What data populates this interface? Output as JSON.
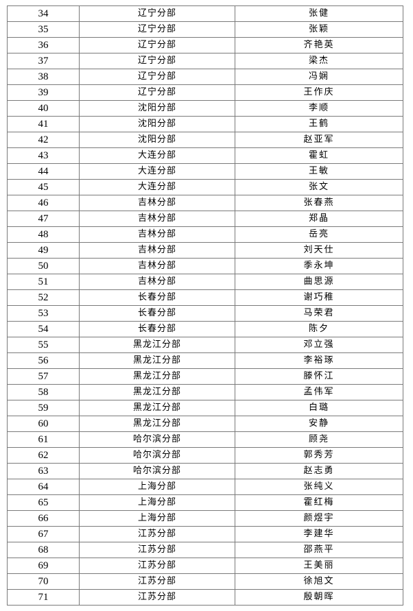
{
  "table": {
    "rows": [
      {
        "no": "34",
        "dept": "辽宁分部",
        "name": "张健"
      },
      {
        "no": "35",
        "dept": "辽宁分部",
        "name": "张颖"
      },
      {
        "no": "36",
        "dept": "辽宁分部",
        "name": "齐艳英"
      },
      {
        "no": "37",
        "dept": "辽宁分部",
        "name": "梁杰"
      },
      {
        "no": "38",
        "dept": "辽宁分部",
        "name": "冯娴"
      },
      {
        "no": "39",
        "dept": "辽宁分部",
        "name": "王作庆"
      },
      {
        "no": "40",
        "dept": "沈阳分部",
        "name": "李顺"
      },
      {
        "no": "41",
        "dept": "沈阳分部",
        "name": "王鹤"
      },
      {
        "no": "42",
        "dept": "沈阳分部",
        "name": "赵亚军"
      },
      {
        "no": "43",
        "dept": "大连分部",
        "name": "霍虹"
      },
      {
        "no": "44",
        "dept": "大连分部",
        "name": "王敏"
      },
      {
        "no": "45",
        "dept": "大连分部",
        "name": "张文"
      },
      {
        "no": "46",
        "dept": "吉林分部",
        "name": "张春燕"
      },
      {
        "no": "47",
        "dept": "吉林分部",
        "name": "郑晶"
      },
      {
        "no": "48",
        "dept": "吉林分部",
        "name": "岳亮"
      },
      {
        "no": "49",
        "dept": "吉林分部",
        "name": "刘天仕"
      },
      {
        "no": "50",
        "dept": "吉林分部",
        "name": "季永坤"
      },
      {
        "no": "51",
        "dept": "吉林分部",
        "name": "曲思源"
      },
      {
        "no": "52",
        "dept": "长春分部",
        "name": "谢巧稚"
      },
      {
        "no": "53",
        "dept": "长春分部",
        "name": "马荣君"
      },
      {
        "no": "54",
        "dept": "长春分部",
        "name": "陈夕"
      },
      {
        "no": "55",
        "dept": "黑龙江分部",
        "name": "邓立强"
      },
      {
        "no": "56",
        "dept": "黑龙江分部",
        "name": "李裕琢"
      },
      {
        "no": "57",
        "dept": "黑龙江分部",
        "name": "滕怀江"
      },
      {
        "no": "58",
        "dept": "黑龙江分部",
        "name": "孟伟军"
      },
      {
        "no": "59",
        "dept": "黑龙江分部",
        "name": "白璐"
      },
      {
        "no": "60",
        "dept": "黑龙江分部",
        "name": "安静"
      },
      {
        "no": "61",
        "dept": "哈尔滨分部",
        "name": "顾尧"
      },
      {
        "no": "62",
        "dept": "哈尔滨分部",
        "name": "郭秀芳"
      },
      {
        "no": "63",
        "dept": "哈尔滨分部",
        "name": "赵志勇"
      },
      {
        "no": "64",
        "dept": "上海分部",
        "name": "张纯义"
      },
      {
        "no": "65",
        "dept": "上海分部",
        "name": "霍红梅"
      },
      {
        "no": "66",
        "dept": "上海分部",
        "name": "颜煜宇"
      },
      {
        "no": "67",
        "dept": "江苏分部",
        "name": "李建华"
      },
      {
        "no": "68",
        "dept": "江苏分部",
        "name": "邵燕平"
      },
      {
        "no": "69",
        "dept": "江苏分部",
        "name": "王美丽"
      },
      {
        "no": "70",
        "dept": "江苏分部",
        "name": "徐旭文"
      },
      {
        "no": "71",
        "dept": "江苏分部",
        "name": "殷朝晖"
      }
    ]
  }
}
